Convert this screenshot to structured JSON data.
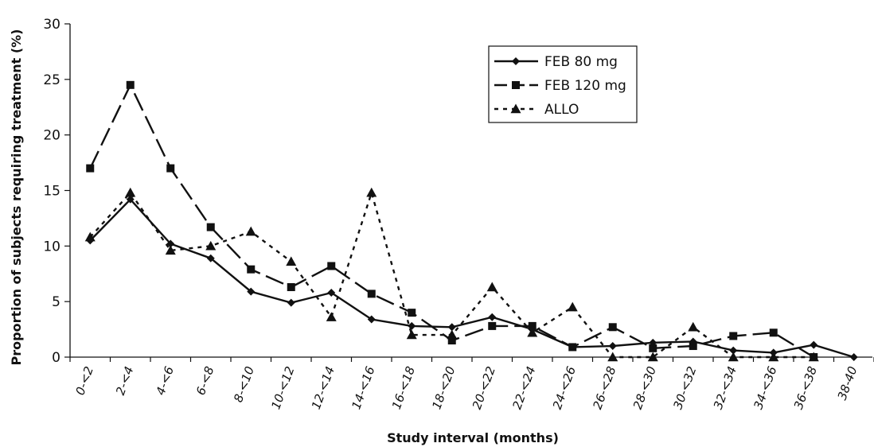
{
  "chart_data": {
    "type": "line",
    "title": "",
    "xlabel": "Study interval (months)",
    "ylabel": "Proportion of subjects requiring treatment (%)",
    "ylim": [
      0,
      30
    ],
    "yticks": [
      "0",
      "5",
      "10",
      "15",
      "20",
      "25",
      "30"
    ],
    "grid": false,
    "legend_position": "top-right",
    "categories": [
      "0-<2",
      "2-<4",
      "4-<6",
      "6-<8",
      "8-<10",
      "10-<12",
      "12-<14",
      "14-<16",
      "16-<18",
      "18-<20",
      "20-<22",
      "22-<24",
      "24-<26",
      "26-<28",
      "28-<30",
      "30-<32",
      "32-<34",
      "34-<36",
      "36-<38",
      "38-40"
    ],
    "series": [
      {
        "name": "FEB 80 mg",
        "marker": "diamond",
        "line_style": "solid",
        "color": "#111111",
        "values": [
          10.5,
          14.2,
          10.2,
          8.9,
          5.9,
          4.9,
          5.8,
          3.4,
          2.8,
          2.7,
          3.6,
          2.5,
          0.9,
          1.0,
          1.3,
          1.4,
          0.6,
          0.4,
          1.1,
          0.0
        ]
      },
      {
        "name": "FEB 120 mg",
        "marker": "square",
        "line_style": "long-dash",
        "color": "#111111",
        "values": [
          17.0,
          24.5,
          17.0,
          11.7,
          7.9,
          6.3,
          8.2,
          5.7,
          4.0,
          1.5,
          2.8,
          2.8,
          0.9,
          2.7,
          0.8,
          1.0,
          1.9,
          2.2,
          0.0,
          null
        ]
      },
      {
        "name": "ALLO",
        "marker": "triangle",
        "line_style": "dotted",
        "color": "#111111",
        "values": [
          10.8,
          14.8,
          9.6,
          10.0,
          11.3,
          8.6,
          3.6,
          14.8,
          2.0,
          2.0,
          6.3,
          2.2,
          4.5,
          0.0,
          0.0,
          2.7,
          0.0,
          0.0,
          0.0,
          null
        ]
      }
    ]
  }
}
